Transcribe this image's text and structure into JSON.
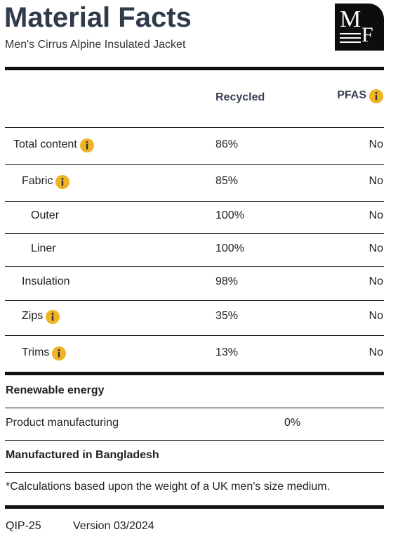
{
  "header": {
    "title": "Material Facts",
    "subtitle": "Men's Cirrus Alpine Insulated Jacket",
    "logo": {
      "top": "M",
      "bottom": "F"
    }
  },
  "table": {
    "columns": [
      {
        "label": "Recycled",
        "info": false
      },
      {
        "label": "PFAS",
        "info": true
      }
    ],
    "rows": [
      {
        "label": "Total content",
        "level": 0,
        "info": true,
        "recycled": "86%",
        "pfas": "No"
      },
      {
        "label": "Fabric",
        "level": 1,
        "info": true,
        "recycled": "85%",
        "pfas": "No"
      },
      {
        "label": "Outer",
        "level": 2,
        "info": false,
        "recycled": "100%",
        "pfas": "No"
      },
      {
        "label": "Liner",
        "level": 2,
        "info": false,
        "recycled": "100%",
        "pfas": "No"
      },
      {
        "label": "Insulation",
        "level": 1,
        "info": false,
        "recycled": "98%",
        "pfas": "No"
      },
      {
        "label": "Zips",
        "level": 1,
        "info": true,
        "recycled": "35%",
        "pfas": "No"
      },
      {
        "label": "Trims",
        "level": 1,
        "info": true,
        "recycled": "13%",
        "pfas": "No"
      }
    ]
  },
  "energy": {
    "heading": "Renewable energy",
    "rows": [
      {
        "label": "Product manufacturing",
        "value": "0%"
      }
    ]
  },
  "origin": "Manufactured in Bangladesh",
  "footnote": "*Calculations based upon the weight of a UK men's size medium.",
  "footer": [
    "QIP-25",
    "Version 03/2024"
  ]
}
